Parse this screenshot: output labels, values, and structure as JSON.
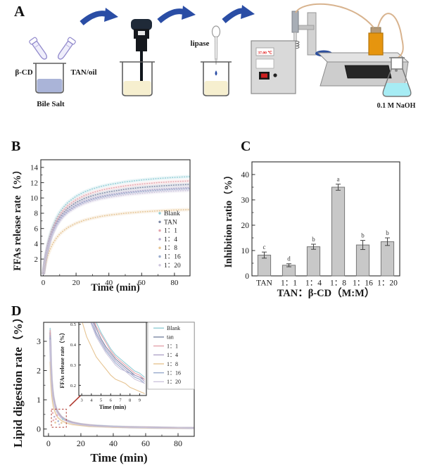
{
  "panels": {
    "a": "A",
    "b": "B",
    "c": "C",
    "d": "D"
  },
  "panel_a": {
    "beta_cd": "β-CD",
    "tan_oil": "TAN/oil",
    "bile_salt": "Bile Salt",
    "lipase": "lipase",
    "naoh": "0.1 M NaOH",
    "temperature": "37.00 ℃"
  },
  "chart_data": [
    {
      "id": "chartB",
      "panel": "B",
      "type": "line",
      "xlabel": "Time (min)",
      "ylabel": "FFAs release rate（%）",
      "xlim": [
        -1.5,
        89.5
      ],
      "ylim": [
        -0.2,
        15
      ],
      "xticks": [
        0,
        20,
        40,
        60,
        80
      ],
      "yticks": [
        2,
        4,
        6,
        8,
        10,
        12,
        14
      ],
      "grid": false,
      "legend_position": "inside lower right",
      "x": [
        0,
        1,
        2,
        3,
        4,
        5,
        6,
        8,
        10,
        12,
        15,
        20,
        25,
        30,
        35,
        40,
        50,
        60,
        70,
        80,
        90
      ],
      "series": [
        {
          "name": "Blank",
          "color": "#92cdd6",
          "values": [
            0,
            1.73,
            3.07,
            4.14,
            5.02,
            5.75,
            6.37,
            7.36,
            8.12,
            8.72,
            9.41,
            10.22,
            10.78,
            11.19,
            11.5,
            11.74,
            12.11,
            12.36,
            12.55,
            12.69,
            12.8
          ]
        },
        {
          "name": "TAN",
          "color": "#7c88a4",
          "values": [
            0,
            1.59,
            2.83,
            3.81,
            4.62,
            5.29,
            5.86,
            6.77,
            7.47,
            8.03,
            8.66,
            9.41,
            9.92,
            10.3,
            10.58,
            10.8,
            11.14,
            11.38,
            11.55,
            11.68,
            11.78
          ]
        },
        {
          "name": "1：1",
          "color": "#e4a3ac",
          "values": [
            0,
            1.66,
            2.94,
            3.96,
            4.8,
            5.5,
            6.09,
            7.04,
            7.77,
            8.34,
            9.0,
            9.78,
            10.31,
            10.7,
            11.0,
            11.23,
            11.58,
            11.82,
            12.01,
            12.14,
            12.24
          ]
        },
        {
          "name": "1：4",
          "color": "#b2a5ca",
          "values": [
            0,
            1.54,
            2.73,
            3.67,
            4.46,
            5.1,
            5.65,
            6.53,
            7.21,
            7.74,
            8.35,
            9.07,
            9.57,
            9.93,
            10.21,
            10.42,
            10.75,
            10.97,
            11.14,
            11.27,
            11.36
          ]
        },
        {
          "name": "1：8",
          "color": "#e6c492",
          "values": [
            0,
            1.08,
            1.94,
            2.63,
            3.2,
            3.68,
            4.09,
            4.75,
            5.26,
            5.66,
            6.13,
            6.69,
            7.08,
            7.36,
            7.58,
            7.75,
            8.0,
            8.18,
            8.31,
            8.41,
            8.49
          ]
        },
        {
          "name": "1：16",
          "color": "#9aaccd",
          "values": [
            0,
            1.52,
            2.69,
            3.63,
            4.4,
            5.04,
            5.58,
            6.45,
            7.12,
            7.65,
            8.25,
            8.96,
            9.45,
            9.81,
            10.08,
            10.29,
            10.62,
            10.84,
            11.0,
            11.13,
            11.22
          ]
        },
        {
          "name": "1：20",
          "color": "#cdc5dd",
          "values": [
            0,
            1.49,
            2.64,
            3.56,
            4.31,
            4.94,
            5.47,
            6.32,
            6.97,
            7.49,
            8.08,
            8.78,
            9.26,
            9.61,
            9.88,
            10.08,
            10.4,
            10.61,
            10.78,
            10.9,
            10.99
          ]
        }
      ]
    },
    {
      "id": "chartC",
      "panel": "C",
      "type": "bar",
      "xlabel": "TAN：β-CD（M:M）",
      "ylabel": "Inhibition ratio（%）",
      "ylim": [
        0,
        45
      ],
      "yticks": [
        0,
        10,
        20,
        30,
        40
      ],
      "categories": [
        "TAN",
        "1：1",
        "1：4",
        "1：8",
        "1：16",
        "1：20"
      ],
      "values": [
        8.2,
        4.2,
        11.5,
        35.0,
        12.2,
        13.5
      ],
      "errors": [
        1.2,
        0.6,
        1.0,
        1.2,
        1.8,
        1.5
      ],
      "letters": [
        "c",
        "d",
        "b",
        "a",
        "b",
        "b"
      ],
      "bar_color": "#c8c8c8",
      "edge_color": "#777777",
      "error_color": "#444444"
    },
    {
      "id": "chartD",
      "panel": "D",
      "type": "line",
      "xlabel": "Time (min)",
      "ylabel": "Lipid digestion rate（%）",
      "xlim": [
        -3,
        90
      ],
      "ylim": [
        -0.25,
        3.65
      ],
      "xticks": [
        0,
        20,
        40,
        60,
        80
      ],
      "yticks": [
        0,
        1,
        2,
        3
      ],
      "annotation_color": "#b03a30",
      "zoom_box": {
        "x0": 1.8,
        "x1": 11.0,
        "y0": 0.06,
        "y1": 0.68
      },
      "arrow": {
        "x1": 13,
        "y1": 0.78,
        "x2": 26,
        "y2": 1.48
      },
      "dots": [
        {
          "x": 2.6,
          "y": 0.55,
          "c": "#e4a3ac"
        },
        {
          "x": 3.6,
          "y": 0.42,
          "c": "#b2a5ca"
        },
        {
          "x": 4.6,
          "y": 0.34,
          "c": "#e4a3ac"
        },
        {
          "x": 6.0,
          "y": 0.27,
          "c": "#9aaccd"
        },
        {
          "x": 8.0,
          "y": 0.21,
          "c": "#e6c492"
        },
        {
          "x": 3.0,
          "y": 0.3,
          "c": "#e4a3ac"
        },
        {
          "x": 4.2,
          "y": 0.22,
          "c": "#e6c492"
        },
        {
          "x": 6.6,
          "y": 0.16,
          "c": "#cdc5dd"
        },
        {
          "x": 8.8,
          "y": 0.34,
          "c": "#92cdd6"
        },
        {
          "x": 5.2,
          "y": 0.47,
          "c": "#e4a3ac"
        }
      ],
      "x": [
        1,
        1.5,
        2,
        2.5,
        3,
        4,
        5,
        6,
        8,
        10,
        12,
        15,
        20,
        25,
        30,
        40,
        50,
        60,
        70,
        80,
        90
      ],
      "series": [
        {
          "name": "Blank",
          "color": "#92cdd6",
          "values": [
            3.45,
            2.3,
            1.73,
            1.38,
            1.15,
            0.86,
            0.69,
            0.58,
            0.43,
            0.35,
            0.29,
            0.23,
            0.17,
            0.14,
            0.12,
            0.09,
            0.07,
            0.06,
            0.05,
            0.04,
            0.04
          ]
        },
        {
          "name": "tan",
          "color": "#7c88a4",
          "values": [
            3.3,
            2.2,
            1.65,
            1.32,
            1.1,
            0.83,
            0.66,
            0.55,
            0.41,
            0.33,
            0.28,
            0.22,
            0.17,
            0.13,
            0.11,
            0.08,
            0.07,
            0.06,
            0.05,
            0.04,
            0.04
          ]
        },
        {
          "name": "1：1",
          "color": "#e4a3ac",
          "values": [
            3.38,
            2.25,
            1.69,
            1.35,
            1.13,
            0.85,
            0.68,
            0.57,
            0.42,
            0.34,
            0.28,
            0.23,
            0.17,
            0.14,
            0.11,
            0.08,
            0.07,
            0.06,
            0.05,
            0.04,
            0.04
          ]
        },
        {
          "name": "1：4",
          "color": "#b2a5ca",
          "values": [
            3.2,
            2.13,
            1.6,
            1.28,
            1.07,
            0.8,
            0.64,
            0.53,
            0.4,
            0.32,
            0.27,
            0.21,
            0.16,
            0.13,
            0.11,
            0.08,
            0.06,
            0.05,
            0.05,
            0.04,
            0.04
          ]
        },
        {
          "name": "1：8",
          "color": "#e6c492",
          "values": [
            2.3,
            1.53,
            1.15,
            0.92,
            0.77,
            0.58,
            0.46,
            0.38,
            0.29,
            0.23,
            0.19,
            0.15,
            0.12,
            0.09,
            0.08,
            0.06,
            0.05,
            0.04,
            0.03,
            0.03,
            0.03
          ]
        },
        {
          "name": "1：16",
          "color": "#9aaccd",
          "values": [
            3.12,
            2.08,
            1.56,
            1.25,
            1.04,
            0.78,
            0.62,
            0.52,
            0.39,
            0.31,
            0.26,
            0.21,
            0.16,
            0.12,
            0.1,
            0.08,
            0.06,
            0.05,
            0.04,
            0.04,
            0.03
          ]
        },
        {
          "name": "1：20",
          "color": "#cdc5dd",
          "values": [
            3.05,
            2.03,
            1.53,
            1.22,
            1.02,
            0.76,
            0.61,
            0.51,
            0.38,
            0.31,
            0.25,
            0.2,
            0.15,
            0.12,
            0.1,
            0.08,
            0.06,
            0.05,
            0.04,
            0.04,
            0.03
          ]
        }
      ]
    },
    {
      "id": "chartDinset",
      "panel": "D-inset",
      "type": "line",
      "xlabel": "Time (min)",
      "ylabel": "FFAs release rate（%）",
      "xlim": [
        2.7,
        9.7
      ],
      "ylim": [
        0.15,
        0.51
      ],
      "xticks": [
        3,
        4,
        5,
        6,
        7,
        8,
        9
      ],
      "yticks": [
        0.2,
        0.3,
        0.4,
        0.5
      ],
      "legend_position": "outside right box",
      "x": [
        3,
        3.5,
        4,
        4.5,
        5,
        5.5,
        6,
        6.5,
        7,
        7.5,
        8,
        8.5,
        9,
        9.5
      ],
      "series": [
        {
          "name": "Blank",
          "color": "#92cdd6",
          "values": [
            0.77,
            0.66,
            0.58,
            0.51,
            0.46,
            0.42,
            0.38,
            0.35,
            0.33,
            0.31,
            0.29,
            0.27,
            0.26,
            0.24
          ]
        },
        {
          "name": "tan",
          "color": "#7c88a4",
          "values": [
            0.72,
            0.62,
            0.54,
            0.48,
            0.43,
            0.39,
            0.36,
            0.33,
            0.31,
            0.29,
            0.27,
            0.25,
            0.24,
            0.23
          ]
        },
        {
          "name": "1：1",
          "color": "#e4a3ac",
          "values": [
            0.75,
            0.64,
            0.56,
            0.49,
            0.45,
            0.41,
            0.37,
            0.34,
            0.32,
            0.3,
            0.28,
            0.26,
            0.25,
            0.23
          ]
        },
        {
          "name": "1：4",
          "color": "#b2a5ca",
          "values": [
            0.7,
            0.6,
            0.53,
            0.46,
            0.42,
            0.38,
            0.35,
            0.32,
            0.3,
            0.28,
            0.26,
            0.25,
            0.24,
            0.22
          ]
        },
        {
          "name": "1：8",
          "color": "#e6c492",
          "values": [
            0.52,
            0.44,
            0.39,
            0.34,
            0.31,
            0.28,
            0.25,
            0.23,
            0.22,
            0.21,
            0.19,
            0.18,
            0.17,
            0.16
          ]
        },
        {
          "name": "1：16",
          "color": "#9aaccd",
          "values": [
            0.68,
            0.58,
            0.51,
            0.45,
            0.41,
            0.37,
            0.34,
            0.31,
            0.29,
            0.27,
            0.26,
            0.24,
            0.23,
            0.21
          ]
        },
        {
          "name": "1：20",
          "color": "#cdc5dd",
          "values": [
            0.66,
            0.57,
            0.5,
            0.44,
            0.4,
            0.36,
            0.33,
            0.3,
            0.28,
            0.27,
            0.25,
            0.23,
            0.22,
            0.21
          ]
        }
      ]
    }
  ]
}
